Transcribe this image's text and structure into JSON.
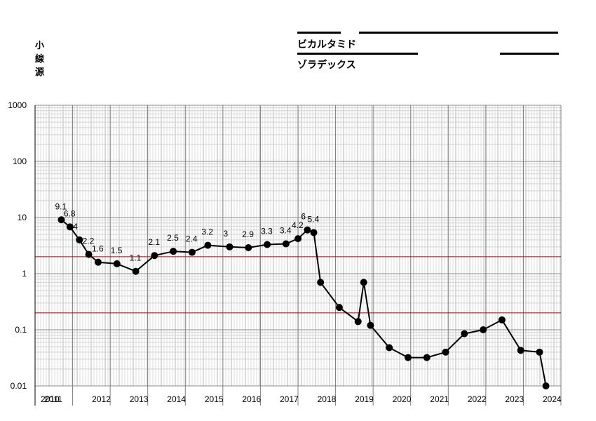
{
  "header": {
    "vertical_label": [
      "小",
      "線",
      "源"
    ],
    "drugs": [
      "ビカルタミド",
      "ゾラデックス"
    ]
  },
  "chart_data": {
    "type": "line",
    "yscale": "log",
    "ylim": [
      0.01,
      1000
    ],
    "y_ticks": [
      "1000",
      "100",
      "10",
      "1",
      "0.1",
      "0.01"
    ],
    "x_ticks": [
      "2010",
      "2011",
      "2012",
      "2013",
      "2014",
      "2015",
      "2016",
      "2017",
      "2018",
      "2019",
      "2020",
      "2021",
      "2022",
      "2023",
      "2024"
    ],
    "reference_lines": [
      2,
      0.2
    ],
    "reference_color": "#cc0000",
    "series": [
      {
        "values": [
          {
            "x": 2010.7,
            "y": 9.1,
            "label": "9.1"
          },
          {
            "x": 2010.93,
            "y": 6.8,
            "label": "6.8"
          },
          {
            "x": 2011.18,
            "y": 4,
            "label": "4"
          },
          {
            "x": 2011.43,
            "y": 2.2,
            "label": "2.2"
          },
          {
            "x": 2011.68,
            "y": 1.6,
            "label": "1.6"
          },
          {
            "x": 2012.18,
            "y": 1.5,
            "label": "1.5"
          },
          {
            "x": 2012.68,
            "y": 1.1,
            "label": "1.1"
          },
          {
            "x": 2013.18,
            "y": 2.1,
            "label": "2.1"
          },
          {
            "x": 2013.68,
            "y": 2.5,
            "label": "2.5"
          },
          {
            "x": 2014.18,
            "y": 2.4,
            "label": "2.4"
          },
          {
            "x": 2014.6,
            "y": 3.2,
            "label": "3.2"
          },
          {
            "x": 2015.18,
            "y": 3,
            "label": "3"
          },
          {
            "x": 2015.68,
            "y": 2.9,
            "label": "2.9"
          },
          {
            "x": 2016.18,
            "y": 3.3,
            "label": "3.3"
          },
          {
            "x": 2016.68,
            "y": 3.4,
            "label": "3.4"
          },
          {
            "x": 2017.0,
            "y": 4.2,
            "label": "4.2"
          },
          {
            "x": 2017.25,
            "y": 6,
            "label": "6"
          },
          {
            "x": 2017.42,
            "y": 5.4,
            "label": "5.4"
          },
          {
            "x": 2017.6,
            "y": 0.7
          },
          {
            "x": 2018.1,
            "y": 0.25
          },
          {
            "x": 2018.6,
            "y": 0.14
          },
          {
            "x": 2018.75,
            "y": 0.7
          },
          {
            "x": 2018.93,
            "y": 0.12
          },
          {
            "x": 2019.43,
            "y": 0.048
          },
          {
            "x": 2019.93,
            "y": 0.032
          },
          {
            "x": 2020.43,
            "y": 0.032
          },
          {
            "x": 2020.93,
            "y": 0.04
          },
          {
            "x": 2021.43,
            "y": 0.085
          },
          {
            "x": 2021.93,
            "y": 0.1
          },
          {
            "x": 2022.43,
            "y": 0.15
          },
          {
            "x": 2022.93,
            "y": 0.043
          },
          {
            "x": 2023.43,
            "y": 0.04
          },
          {
            "x": 2023.6,
            "y": 0.01
          }
        ]
      }
    ]
  }
}
